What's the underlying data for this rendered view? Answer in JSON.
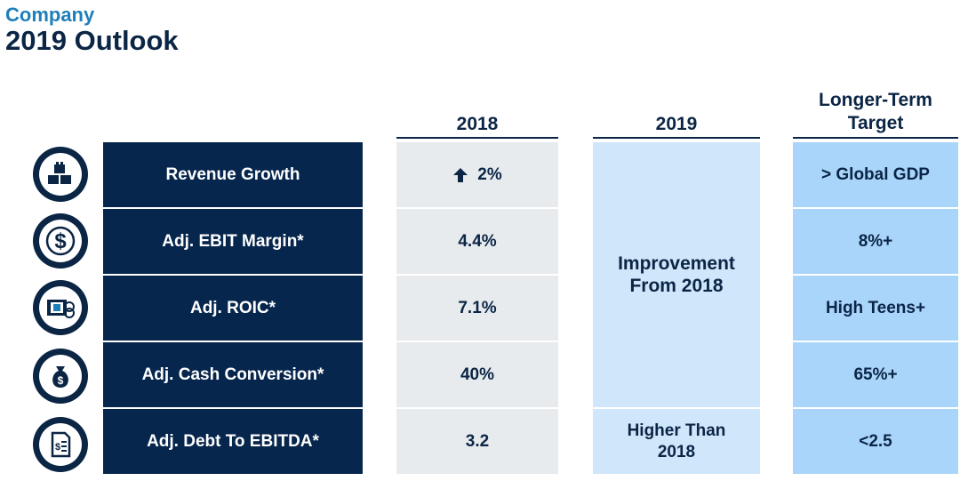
{
  "header": {
    "subtitle": "Company",
    "title": "2019 Outlook"
  },
  "columns": {
    "col_2018": "2018",
    "col_2019": "2019",
    "col_target_line1": "Longer-Term",
    "col_target_line2": "Target"
  },
  "rows": [
    {
      "label": "Revenue Growth",
      "icon": "blocks-icon",
      "v2018": "2%",
      "v2018_arrow": "up-arrow-icon",
      "target": "> Global GDP"
    },
    {
      "label": "Adj. EBIT Margin*",
      "icon": "dollar-icon",
      "v2018": "4.4%",
      "target": "8%+"
    },
    {
      "label": "Adj. ROIC*",
      "icon": "money-stack-icon",
      "v2018": "7.1%",
      "target": "High Teens+"
    },
    {
      "label": "Adj. Cash Conversion*",
      "icon": "money-bag-icon",
      "v2018": "40%",
      "target": "65%+"
    },
    {
      "label": "Adj. Debt To EBITDA*",
      "icon": "invoice-icon",
      "v2018": "3.2",
      "target": "<2.5"
    }
  ],
  "outlook_2019": {
    "merged_line1": "Improvement",
    "merged_line2": "From 2018",
    "debt_line1": "Higher Than",
    "debt_line2": "2018"
  },
  "colors": {
    "navy": "#07264d",
    "accent_blue": "#1f7fb8",
    "cell_2018": "#e8ebee",
    "cell_2019": "#d0e6fb",
    "cell_target": "#a9d5fb"
  }
}
